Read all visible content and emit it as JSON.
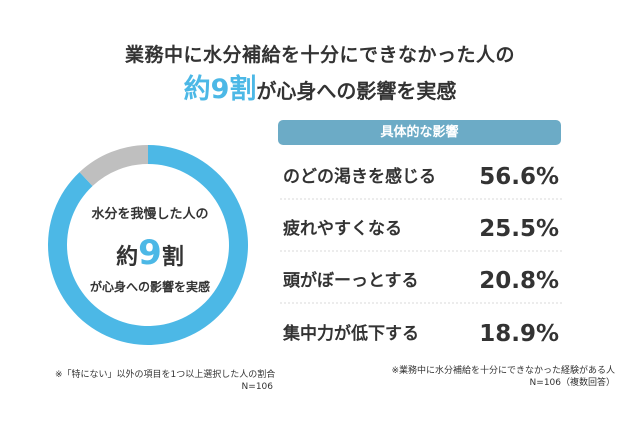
{
  "title": {
    "line1": "業務中に水分補給を十分にできなかった人の",
    "highlight": "約9割",
    "rest": "が心身への影響を実感"
  },
  "donut_center": {
    "line1": "水分を我慢した人の",
    "prefix": "約",
    "number": "9",
    "suffix": "割",
    "line3": "が心身への影響を実感"
  },
  "notes": {
    "left_line1": "※「特にない」以外の項目を1つ以上選択した人の割合",
    "left_line2": "N=106",
    "right_line1": "※業務中に水分補給を十分にできなかった経験がある人",
    "right_line2": "N=106（複数回答）"
  },
  "colors": {
    "accent": "#4cb8e6",
    "gray": "#bfbfbf",
    "header_bg": "#6cabc6",
    "divider": "#d9d9d9"
  },
  "chart_data": [
    {
      "type": "pie",
      "categories": [
        "影響を実感",
        "特にない"
      ],
      "values": [
        88,
        12
      ],
      "colors": [
        "#4cb8e6",
        "#bfbfbf"
      ],
      "style": "donut"
    },
    {
      "type": "table",
      "header": "具体的な影響",
      "rows": [
        {
          "label": "のどの渇きを感じる",
          "value": "56.6%"
        },
        {
          "label": "疲れやすくなる",
          "value": "25.5%"
        },
        {
          "label": "頭がぼーっとする",
          "value": "20.8%"
        },
        {
          "label": "集中力が低下する",
          "value": "18.9%"
        }
      ]
    }
  ]
}
